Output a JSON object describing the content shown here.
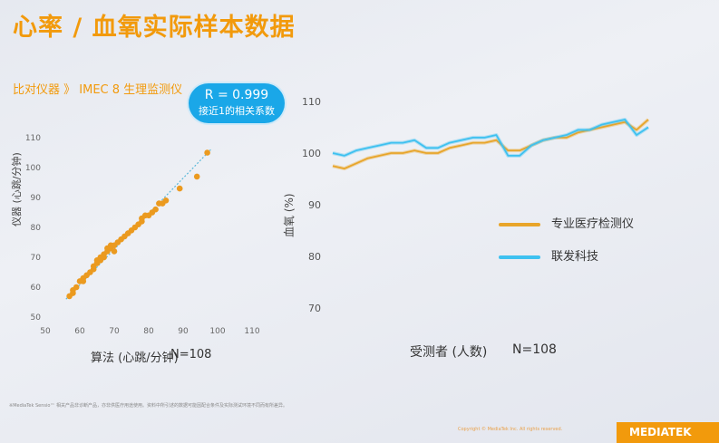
{
  "header": {
    "title": "心率 / 血氧实际样本数据",
    "subtitle": "比对仪器 》 IMEC 8 生理监测仪"
  },
  "badge": {
    "r_value": "R = 0.999",
    "desc": "接近1的相关系数"
  },
  "left_chart": {
    "ylabel": "仪器 (心跳/分钟)",
    "xlabel": "算法 (心跳/分钟)",
    "n": "N=108"
  },
  "right_chart": {
    "ylabel": "血氧 (%)",
    "xlabel": "受测者 (人数)",
    "n": "N=108",
    "legend": [
      "专业医疗检测仪",
      "联发科技"
    ]
  },
  "footer": {
    "footnote": "※MediaTek Sensio™ 相关产品非诊断产品，亦非供医疗用途使用。资料中所引述的数据可能因配合条件及实际测试环境不同而有所差异。",
    "copyright": "Copyright © MediaTek Inc. All rights reserved.",
    "logo": "MEDIATEK"
  },
  "colors": {
    "accent": "#f29a0c",
    "orange_series": "#e8a52a",
    "blue_series": "#3ec1f0"
  },
  "chart_data": [
    {
      "type": "scatter",
      "title": "",
      "xlabel": "算法 (心跳/分钟)",
      "ylabel": "仪器 (心跳/分钟)",
      "xlim": [
        50,
        110
      ],
      "ylim": [
        50,
        110
      ],
      "xticks": [
        50,
        60,
        70,
        80,
        90,
        100,
        110
      ],
      "yticks": [
        50,
        60,
        70,
        80,
        90,
        100,
        110
      ],
      "trendline": true,
      "points": [
        [
          57,
          57
        ],
        [
          58,
          58
        ],
        [
          58,
          59
        ],
        [
          59,
          60
        ],
        [
          60,
          62
        ],
        [
          61,
          63
        ],
        [
          61,
          62
        ],
        [
          62,
          64
        ],
        [
          63,
          65
        ],
        [
          64,
          66
        ],
        [
          64,
          67
        ],
        [
          65,
          68
        ],
        [
          65,
          69
        ],
        [
          66,
          69
        ],
        [
          66,
          70
        ],
        [
          67,
          70
        ],
        [
          67,
          71
        ],
        [
          68,
          72
        ],
        [
          68,
          73
        ],
        [
          69,
          73
        ],
        [
          69,
          74
        ],
        [
          70,
          74
        ],
        [
          70,
          72
        ],
        [
          71,
          75
        ],
        [
          72,
          76
        ],
        [
          73,
          77
        ],
        [
          74,
          78
        ],
        [
          75,
          79
        ],
        [
          76,
          80
        ],
        [
          77,
          81
        ],
        [
          78,
          82
        ],
        [
          78,
          83
        ],
        [
          79,
          84
        ],
        [
          80,
          84
        ],
        [
          81,
          85
        ],
        [
          82,
          86
        ],
        [
          83,
          88
        ],
        [
          84,
          88
        ],
        [
          85,
          89
        ],
        [
          89,
          93
        ],
        [
          94,
          97
        ],
        [
          97,
          105
        ]
      ]
    },
    {
      "type": "line",
      "title": "",
      "xlabel": "受测者 (人数)",
      "ylabel": "血氧 (%)",
      "ylim": [
        70,
        110
      ],
      "yticks": [
        70,
        80,
        90,
        100,
        110
      ],
      "series": [
        {
          "name": "专业医疗检测仪",
          "values": [
            97.5,
            97,
            98,
            99,
            99.5,
            100,
            100,
            100.5,
            100,
            100,
            101,
            101.5,
            102,
            102,
            102.5,
            100.5,
            100.5,
            101.5,
            102.5,
            103,
            103,
            104,
            104.5,
            105,
            105.5,
            106,
            104.5,
            106.5
          ]
        },
        {
          "name": "联发科技",
          "values": [
            100,
            99.5,
            100.5,
            101,
            101.5,
            102,
            102,
            102.5,
            101,
            101,
            102,
            102.5,
            103,
            103,
            103.5,
            99.5,
            99.5,
            101.5,
            102.5,
            103,
            103.5,
            104.5,
            104.5,
            105.5,
            106,
            106.5,
            103.5,
            105
          ]
        }
      ]
    }
  ]
}
